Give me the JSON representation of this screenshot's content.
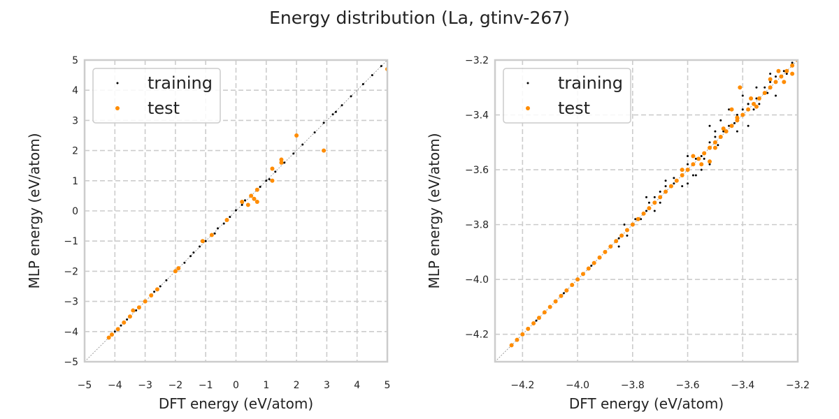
{
  "figure": {
    "title": "Energy distribution (La, gtinv-267)"
  },
  "colors": {
    "training": "#000000",
    "test": "#ff8c00",
    "grid": "#cccccc",
    "diagonal": "#888888"
  },
  "chart_data": [
    {
      "type": "scatter",
      "xlabel": "DFT energy (eV/atom)",
      "ylabel": "MLP energy (eV/atom)",
      "xlim": [
        -5,
        5
      ],
      "ylim": [
        -5,
        5
      ],
      "xticks": [
        -5,
        -4,
        -3,
        -2,
        -1,
        0,
        1,
        2,
        3,
        4,
        5
      ],
      "yticks": [
        -5,
        -4,
        -3,
        -2,
        -1,
        0,
        1,
        2,
        3,
        4,
        5
      ],
      "xtick_labels": [
        "−5",
        "−4",
        "−3",
        "−2",
        "−1",
        "0",
        "1",
        "2",
        "3",
        "4",
        "5"
      ],
      "ytick_labels": [
        "−5",
        "−4",
        "−3",
        "−2",
        "−1",
        "0",
        "1",
        "2",
        "3",
        "4",
        "5"
      ],
      "grid": true,
      "diagonal": true,
      "legend": {
        "placement": "top-left",
        "entries": [
          "training",
          "test"
        ]
      },
      "series": [
        {
          "name": "training",
          "marker_color": "#000000",
          "points": [
            [
              -4.2,
              -4.2
            ],
            [
              -4.0,
              -4.0
            ],
            [
              -3.8,
              -3.8
            ],
            [
              -3.6,
              -3.6
            ],
            [
              -3.3,
              -3.3
            ],
            [
              -3.0,
              -3.0
            ],
            [
              -2.7,
              -2.68
            ],
            [
              -2.5,
              -2.5
            ],
            [
              -2.3,
              -2.3
            ],
            [
              -2.0,
              -1.98
            ],
            [
              -1.7,
              -1.72
            ],
            [
              -1.5,
              -1.5
            ],
            [
              -1.2,
              -1.18
            ],
            [
              -1.0,
              -1.0
            ],
            [
              -0.8,
              -0.8
            ],
            [
              -0.6,
              -0.58
            ],
            [
              -0.4,
              -0.42
            ],
            [
              -0.2,
              -0.2
            ],
            [
              0.0,
              0.02
            ],
            [
              0.2,
              0.2
            ],
            [
              0.5,
              0.5
            ],
            [
              0.8,
              0.8
            ],
            [
              1.0,
              1.0
            ],
            [
              1.3,
              1.3
            ],
            [
              1.6,
              1.6
            ],
            [
              1.9,
              1.9
            ],
            [
              2.2,
              2.2
            ],
            [
              2.6,
              2.6
            ],
            [
              2.9,
              2.92
            ],
            [
              3.2,
              3.2
            ],
            [
              3.5,
              3.5
            ],
            [
              3.8,
              3.8
            ],
            [
              4.2,
              4.2
            ],
            [
              4.5,
              4.5
            ],
            [
              4.8,
              4.8
            ],
            [
              0.3,
              0.35
            ],
            [
              -0.7,
              -0.75
            ],
            [
              1.1,
              1.05
            ],
            [
              -1.4,
              -1.38
            ],
            [
              3.3,
              3.28
            ]
          ]
        },
        {
          "name": "test",
          "marker_color": "#ff8c00",
          "points": [
            [
              -4.2,
              -4.2
            ],
            [
              -4.1,
              -4.1
            ],
            [
              -3.9,
              -3.92
            ],
            [
              -3.7,
              -3.7
            ],
            [
              -3.5,
              -3.5
            ],
            [
              -3.4,
              -3.3
            ],
            [
              -3.2,
              -3.2
            ],
            [
              -3.0,
              -3.0
            ],
            [
              -2.8,
              -2.8
            ],
            [
              -2.6,
              -2.6
            ],
            [
              -2.0,
              -2.0
            ],
            [
              -1.9,
              -1.9
            ],
            [
              -1.1,
              -1.0
            ],
            [
              -0.8,
              -0.8
            ],
            [
              -0.3,
              -0.3
            ],
            [
              0.2,
              0.3
            ],
            [
              0.4,
              0.2
            ],
            [
              0.5,
              0.5
            ],
            [
              0.6,
              0.4
            ],
            [
              0.7,
              0.3
            ],
            [
              0.7,
              0.7
            ],
            [
              1.2,
              1.0
            ],
            [
              1.2,
              1.4
            ],
            [
              1.5,
              1.6
            ],
            [
              1.5,
              1.7
            ],
            [
              2.0,
              2.5
            ],
            [
              2.9,
              2.0
            ],
            [
              5.0,
              4.7
            ]
          ]
        }
      ]
    },
    {
      "type": "scatter",
      "xlabel": "DFT energy (eV/atom)",
      "ylabel": "MLP energy (eV/atom)",
      "xlim": [
        -4.3,
        -3.2
      ],
      "ylim": [
        -4.3,
        -3.2
      ],
      "xticks": [
        -4.2,
        -4.0,
        -3.8,
        -3.6,
        -3.4,
        -3.2
      ],
      "yticks": [
        -4.2,
        -4.0,
        -3.8,
        -3.6,
        -3.4,
        -3.2
      ],
      "xtick_labels": [
        "−4.2",
        "−4.0",
        "−3.8",
        "−3.6",
        "−3.4",
        "−3.2"
      ],
      "ytick_labels": [
        "−4.2",
        "−4.0",
        "−3.8",
        "−3.6",
        "−3.4",
        "−3.2"
      ],
      "grid": true,
      "diagonal": true,
      "legend": {
        "placement": "top-left",
        "entries": [
          "training",
          "test"
        ]
      },
      "series": [
        {
          "name": "training",
          "marker_color": "#000000",
          "points": [
            [
              -4.24,
              -4.24
            ],
            [
              -4.2,
              -4.2
            ],
            [
              -4.15,
              -4.15
            ],
            [
              -4.1,
              -4.1
            ],
            [
              -4.05,
              -4.05
            ],
            [
              -4.0,
              -4.0
            ],
            [
              -3.95,
              -3.95
            ],
            [
              -3.9,
              -3.9
            ],
            [
              -3.85,
              -3.85
            ],
            [
              -3.8,
              -3.8
            ],
            [
              -3.75,
              -3.75
            ],
            [
              -3.72,
              -3.7
            ],
            [
              -3.7,
              -3.68
            ],
            [
              -3.68,
              -3.66
            ],
            [
              -3.65,
              -3.65
            ],
            [
              -3.62,
              -3.6
            ],
            [
              -3.6,
              -3.58
            ],
            [
              -3.57,
              -3.56
            ],
            [
              -3.55,
              -3.55
            ],
            [
              -3.52,
              -3.5
            ],
            [
              -3.5,
              -3.48
            ],
            [
              -3.47,
              -3.46
            ],
            [
              -3.45,
              -3.44
            ],
            [
              -3.42,
              -3.4
            ],
            [
              -3.4,
              -3.38
            ],
            [
              -3.38,
              -3.36
            ],
            [
              -3.35,
              -3.34
            ],
            [
              -3.32,
              -3.3
            ],
            [
              -3.3,
              -3.28
            ],
            [
              -3.28,
              -3.26
            ],
            [
              -3.25,
              -3.24
            ],
            [
              -3.22,
              -3.21
            ],
            [
              -3.2,
              -3.2
            ],
            [
              -3.58,
              -3.62
            ],
            [
              -3.55,
              -3.6
            ],
            [
              -3.52,
              -3.58
            ],
            [
              -3.62,
              -3.66
            ],
            [
              -3.6,
              -3.65
            ],
            [
              -3.7,
              -3.72
            ],
            [
              -3.72,
              -3.75
            ],
            [
              -3.77,
              -3.78
            ],
            [
              -3.82,
              -3.84
            ],
            [
              -3.85,
              -3.88
            ],
            [
              -3.83,
              -3.8
            ],
            [
              -3.75,
              -3.7
            ],
            [
              -3.68,
              -3.64
            ],
            [
              -3.6,
              -3.55
            ],
            [
              -3.5,
              -3.46
            ],
            [
              -3.45,
              -3.38
            ],
            [
              -3.4,
              -3.33
            ],
            [
              -3.35,
              -3.3
            ],
            [
              -3.3,
              -3.25
            ],
            [
              -3.27,
              -3.24
            ],
            [
              -3.48,
              -3.42
            ],
            [
              -3.52,
              -3.44
            ],
            [
              -3.38,
              -3.44
            ],
            [
              -3.42,
              -3.46
            ],
            [
              -3.38,
              -3.36
            ],
            [
              -3.34,
              -3.36
            ],
            [
              -3.28,
              -3.33
            ],
            [
              -3.25,
              -3.28
            ],
            [
              -3.24,
              -3.25
            ],
            [
              -3.57,
              -3.62
            ],
            [
              -3.54,
              -3.56
            ],
            [
              -3.49,
              -3.51
            ],
            [
              -3.43,
              -3.43
            ],
            [
              -3.36,
              -3.38
            ],
            [
              -3.31,
              -3.32
            ],
            [
              -3.65,
              -3.63
            ],
            [
              -3.74,
              -3.72
            ],
            [
              -3.79,
              -3.78
            ]
          ]
        },
        {
          "name": "test",
          "marker_color": "#ff8c00",
          "points": [
            [
              -4.24,
              -4.24
            ],
            [
              -4.22,
              -4.22
            ],
            [
              -4.2,
              -4.2
            ],
            [
              -4.18,
              -4.18
            ],
            [
              -4.16,
              -4.16
            ],
            [
              -4.14,
              -4.14
            ],
            [
              -4.12,
              -4.12
            ],
            [
              -4.1,
              -4.1
            ],
            [
              -4.08,
              -4.08
            ],
            [
              -4.06,
              -4.06
            ],
            [
              -4.04,
              -4.04
            ],
            [
              -4.02,
              -4.02
            ],
            [
              -4.0,
              -4.0
            ],
            [
              -3.98,
              -3.98
            ],
            [
              -3.96,
              -3.96
            ],
            [
              -3.94,
              -3.94
            ],
            [
              -3.92,
              -3.92
            ],
            [
              -3.9,
              -3.9
            ],
            [
              -3.88,
              -3.88
            ],
            [
              -3.86,
              -3.86
            ],
            [
              -3.84,
              -3.84
            ],
            [
              -3.82,
              -3.82
            ],
            [
              -3.8,
              -3.8
            ],
            [
              -3.78,
              -3.78
            ],
            [
              -3.76,
              -3.76
            ],
            [
              -3.74,
              -3.74
            ],
            [
              -3.72,
              -3.72
            ],
            [
              -3.7,
              -3.7
            ],
            [
              -3.68,
              -3.68
            ],
            [
              -3.66,
              -3.66
            ],
            [
              -3.64,
              -3.64
            ],
            [
              -3.62,
              -3.62
            ],
            [
              -3.6,
              -3.6
            ],
            [
              -3.58,
              -3.58
            ],
            [
              -3.56,
              -3.56
            ],
            [
              -3.54,
              -3.54
            ],
            [
              -3.52,
              -3.52
            ],
            [
              -3.5,
              -3.5
            ],
            [
              -3.48,
              -3.48
            ],
            [
              -3.46,
              -3.46
            ],
            [
              -3.44,
              -3.44
            ],
            [
              -3.42,
              -3.42
            ],
            [
              -3.4,
              -3.4
            ],
            [
              -3.38,
              -3.38
            ],
            [
              -3.36,
              -3.36
            ],
            [
              -3.34,
              -3.34
            ],
            [
              -3.32,
              -3.32
            ],
            [
              -3.3,
              -3.3
            ],
            [
              -3.28,
              -3.28
            ],
            [
              -3.26,
              -3.26
            ],
            [
              -3.24,
              -3.24
            ],
            [
              -3.22,
              -3.22
            ],
            [
              -3.2,
              -3.2
            ],
            [
              -3.41,
              -3.3
            ],
            [
              -3.47,
              -3.45
            ],
            [
              -3.44,
              -3.38
            ],
            [
              -3.52,
              -3.57
            ],
            [
              -3.55,
              -3.58
            ],
            [
              -3.58,
              -3.55
            ],
            [
              -3.62,
              -3.6
            ],
            [
              -3.5,
              -3.52
            ],
            [
              -3.35,
              -3.37
            ],
            [
              -3.3,
              -3.27
            ],
            [
              -3.25,
              -3.28
            ],
            [
              -3.22,
              -3.25
            ],
            [
              -3.27,
              -3.24
            ],
            [
              -3.42,
              -3.41
            ],
            [
              -3.37,
              -3.34
            ]
          ]
        }
      ]
    }
  ]
}
